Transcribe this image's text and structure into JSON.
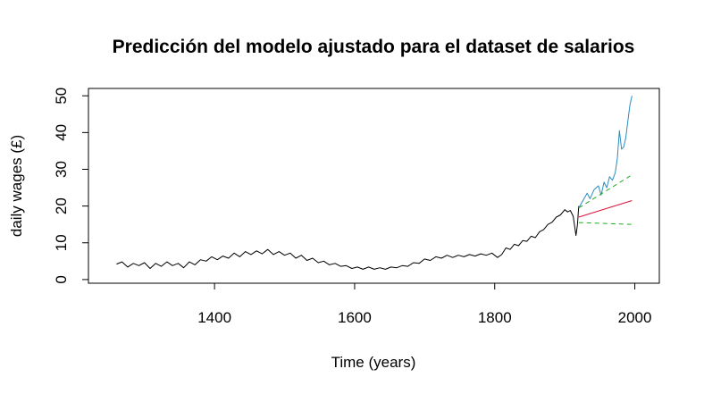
{
  "chart_data": {
    "type": "line",
    "title": "Predicción del modelo ajustado para el dataset de salarios",
    "xlabel": "Time (years)",
    "ylabel": "daily wages (£)",
    "xlim": [
      1220,
      2035
    ],
    "ylim": [
      -1,
      52
    ],
    "xticks": [
      1400,
      1600,
      1800,
      2000
    ],
    "yticks": [
      0,
      10,
      20,
      30,
      40,
      50
    ],
    "grid": false,
    "legend": "none",
    "series": [
      {
        "color": "#000000",
        "style": "solid",
        "points": [
          [
            1260,
            4.2
          ],
          [
            1268,
            4.8
          ],
          [
            1276,
            3.4
          ],
          [
            1284,
            4.4
          ],
          [
            1292,
            3.8
          ],
          [
            1300,
            4.6
          ],
          [
            1308,
            3.0
          ],
          [
            1316,
            4.4
          ],
          [
            1324,
            3.6
          ],
          [
            1332,
            4.8
          ],
          [
            1340,
            3.8
          ],
          [
            1348,
            4.4
          ],
          [
            1356,
            3.2
          ],
          [
            1364,
            4.8
          ],
          [
            1372,
            4.0
          ],
          [
            1380,
            5.4
          ],
          [
            1388,
            5.0
          ],
          [
            1396,
            6.2
          ],
          [
            1404,
            5.4
          ],
          [
            1412,
            6.4
          ],
          [
            1420,
            5.8
          ],
          [
            1428,
            7.2
          ],
          [
            1436,
            6.2
          ],
          [
            1444,
            7.6
          ],
          [
            1452,
            6.8
          ],
          [
            1460,
            7.8
          ],
          [
            1468,
            7.0
          ],
          [
            1476,
            8.2
          ],
          [
            1484,
            6.8
          ],
          [
            1492,
            7.6
          ],
          [
            1500,
            6.6
          ],
          [
            1508,
            7.2
          ],
          [
            1516,
            5.8
          ],
          [
            1524,
            6.6
          ],
          [
            1532,
            5.2
          ],
          [
            1540,
            5.8
          ],
          [
            1548,
            4.6
          ],
          [
            1556,
            5.0
          ],
          [
            1564,
            4.0
          ],
          [
            1572,
            4.4
          ],
          [
            1580,
            3.6
          ],
          [
            1588,
            3.8
          ],
          [
            1596,
            3.0
          ],
          [
            1604,
            3.4
          ],
          [
            1612,
            2.8
          ],
          [
            1620,
            3.4
          ],
          [
            1628,
            2.8
          ],
          [
            1636,
            3.2
          ],
          [
            1644,
            2.8
          ],
          [
            1652,
            3.4
          ],
          [
            1660,
            3.2
          ],
          [
            1668,
            3.8
          ],
          [
            1676,
            3.6
          ],
          [
            1684,
            4.6
          ],
          [
            1692,
            4.4
          ],
          [
            1700,
            5.6
          ],
          [
            1708,
            5.2
          ],
          [
            1716,
            6.2
          ],
          [
            1724,
            5.8
          ],
          [
            1732,
            6.6
          ],
          [
            1740,
            6.0
          ],
          [
            1748,
            6.6
          ],
          [
            1756,
            6.2
          ],
          [
            1764,
            6.8
          ],
          [
            1772,
            6.4
          ],
          [
            1780,
            7.0
          ],
          [
            1788,
            6.6
          ],
          [
            1796,
            7.2
          ],
          [
            1804,
            6.0
          ],
          [
            1810,
            6.8
          ],
          [
            1816,
            8.6
          ],
          [
            1822,
            8.2
          ],
          [
            1828,
            9.6
          ],
          [
            1834,
            9.2
          ],
          [
            1840,
            10.6
          ],
          [
            1846,
            10.4
          ],
          [
            1852,
            11.8
          ],
          [
            1858,
            11.4
          ],
          [
            1864,
            13.0
          ],
          [
            1870,
            13.6
          ],
          [
            1876,
            15.0
          ],
          [
            1882,
            15.6
          ],
          [
            1888,
            17.0
          ],
          [
            1894,
            17.6
          ],
          [
            1900,
            19.0
          ],
          [
            1904,
            18.4
          ],
          [
            1908,
            18.8
          ],
          [
            1912,
            17.2
          ],
          [
            1916,
            12.0
          ],
          [
            1918,
            14.8
          ],
          [
            1920,
            20.0
          ]
        ]
      },
      {
        "color": "#2b8cbe",
        "style": "solid",
        "points": [
          [
            1920,
            19.5
          ],
          [
            1926,
            21.5
          ],
          [
            1932,
            23.5
          ],
          [
            1936,
            22.0
          ],
          [
            1942,
            24.5
          ],
          [
            1948,
            25.5
          ],
          [
            1952,
            23.0
          ],
          [
            1956,
            26.5
          ],
          [
            1960,
            25.0
          ],
          [
            1964,
            28.0
          ],
          [
            1968,
            27.0
          ],
          [
            1972,
            29.0
          ],
          [
            1975,
            33.0
          ],
          [
            1978,
            40.5
          ],
          [
            1981,
            35.5
          ],
          [
            1984,
            36.0
          ],
          [
            1987,
            38.5
          ],
          [
            1990,
            43.0
          ],
          [
            1993,
            47.5
          ],
          [
            1996,
            50.0
          ]
        ]
      },
      {
        "color": "#dc143c",
        "style": "solid",
        "points": [
          [
            1920,
            17.0
          ],
          [
            1996,
            21.5
          ]
        ]
      },
      {
        "color": "#22aa22",
        "style": "dashed",
        "points": [
          [
            1920,
            19.5
          ],
          [
            1996,
            28.5
          ]
        ]
      },
      {
        "color": "#22aa22",
        "style": "dashed",
        "points": [
          [
            1920,
            15.5
          ],
          [
            1996,
            15.0
          ]
        ]
      }
    ]
  }
}
